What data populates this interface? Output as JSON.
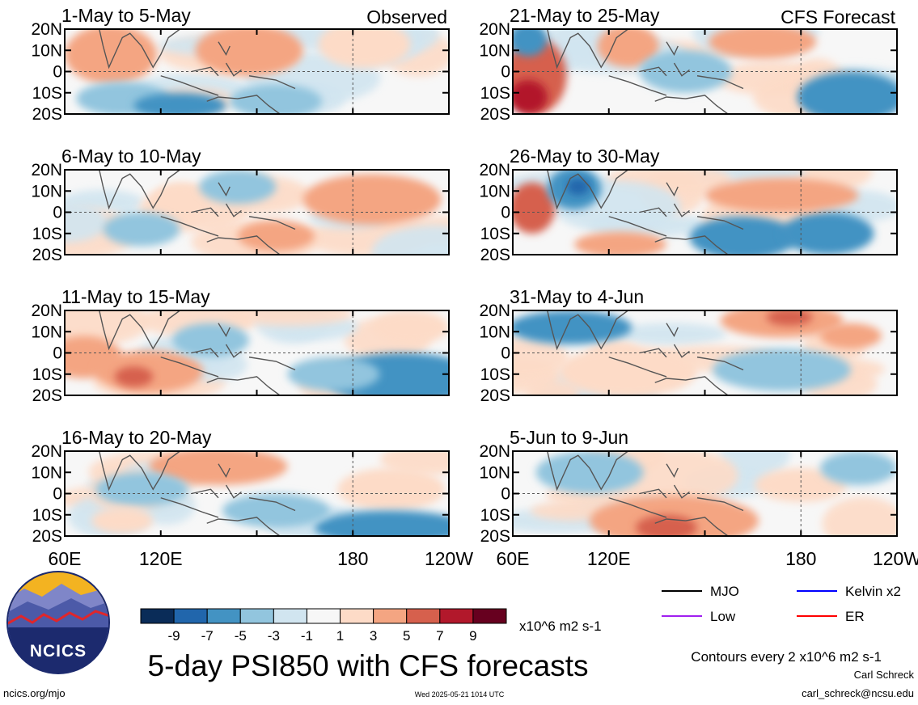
{
  "chart_data": {
    "type": "heatmap",
    "title": "5-day PSI850 with CFS forecasts",
    "units": "x10^6 m2 s-1",
    "contour_note": "Contours every 2 x10^6 m2 s-1",
    "labels": {
      "observed": "Observed",
      "forecast": "CFS Forecast"
    },
    "y_ticks": [
      "20N",
      "10N",
      "0",
      "10S",
      "20S"
    ],
    "x_ticks": [
      "60E",
      "120E",
      "180",
      "120W"
    ],
    "observed_panels": [
      "1-May to 5-May",
      "6-May to 10-May",
      "11-May to 15-May",
      "16-May to 20-May"
    ],
    "forecast_panels": [
      "21-May to 25-May",
      "26-May to 30-May",
      "31-May to 4-Jun",
      "5-Jun to 9-Jun"
    ],
    "colorbar": {
      "ticks": [
        "-9",
        "-7",
        "-5",
        "-3",
        "-1",
        "1",
        "3",
        "5",
        "7",
        "9"
      ],
      "colors": [
        "#0a2c58",
        "#2166ac",
        "#4393c3",
        "#92c5de",
        "#d1e5f0",
        "#f7f7f7",
        "#fddbc7",
        "#f4a582",
        "#d6604d",
        "#b2182b",
        "#67001f"
      ]
    },
    "legend": [
      {
        "label": "MJO",
        "color": "#000000"
      },
      {
        "label": "Kelvin x2",
        "color": "#0000ff"
      },
      {
        "label": "Low",
        "color": "#a020f0"
      },
      {
        "label": "ER",
        "color": "#ff0000"
      }
    ],
    "credits": {
      "org": "NCICS",
      "url": "ncics.org/mjo",
      "timestamp": "Wed 2025-05-21 1014 UTC",
      "author": "Carl Schreck",
      "email": "carl_schreck@ncsu.edu"
    }
  }
}
